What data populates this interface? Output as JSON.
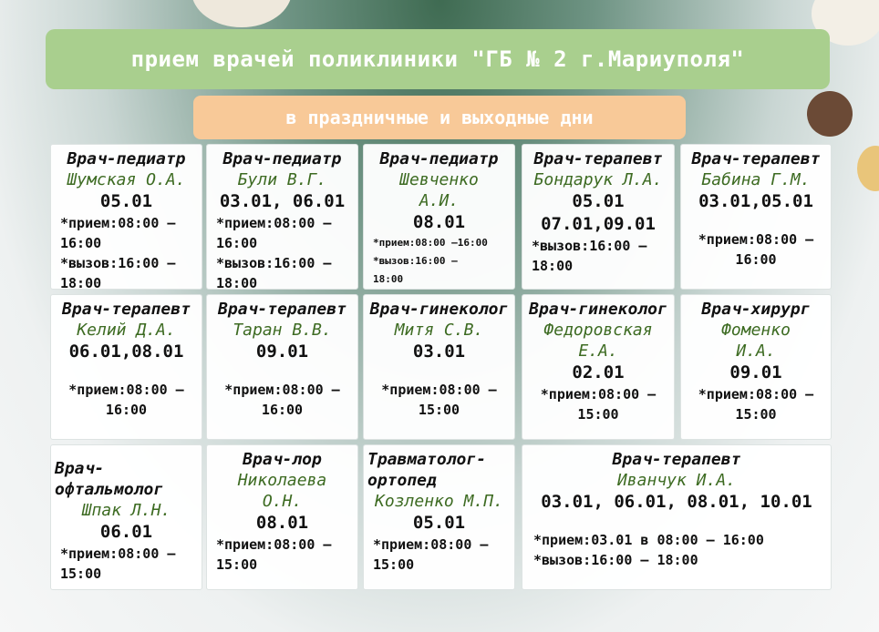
{
  "title": "прием врачей поликлиники \"ГБ № 2 г.Мариуполя\"",
  "subtitle": "в праздничные и выходные дни",
  "colors": {
    "banner": "#a9cf8e",
    "subtitle": "#f8c998",
    "name": "#3d6b22"
  },
  "cards": [
    {
      "role": "Врач-педиатр",
      "name": "Шумская О.А.",
      "dates": "05.01",
      "times": [
        "*прием:08:00 –\n16:00",
        "*вызов:16:00 –\n18:00"
      ]
    },
    {
      "role": "Врач-педиатр",
      "name": "Були В.Г.",
      "dates": "03.01, 06.01",
      "times": [
        "*прием:08:00 –\n16:00",
        "*вызов:16:00 –\n18:00"
      ]
    },
    {
      "role": "Врач-педиатр",
      "name": "Шевченко\nА.И.",
      "dates": "08.01",
      "times": [
        "*прием:08:00 –16:00",
        "*вызов:16:00 –\n18:00"
      ]
    },
    {
      "role": "Врач-терапевт",
      "name": "Бондарук Л.А.",
      "dates": "05.01\n07.01,09.01",
      "times": [
        "*вызов:16:00 –\n18:00"
      ]
    },
    {
      "role": "Врач-терапевт",
      "name": "Бабина Г.М.",
      "dates": "03.01,05.01",
      "times": [
        "*прием:08:00 –\n16:00"
      ]
    },
    {
      "role": "Врач-терапевт",
      "name": "Келий Д.А.",
      "dates": "06.01,08.01",
      "times": [
        "*прием:08:00 –\n16:00"
      ]
    },
    {
      "role": "Врач-терапевт",
      "name": "Таран В.В.",
      "dates": "09.01",
      "times": [
        "*прием:08:00 –\n16:00"
      ]
    },
    {
      "role": "Врач-гинеколог",
      "name": "Митя С.В.",
      "dates": "03.01",
      "times": [
        "*прием:08:00 –\n15:00"
      ]
    },
    {
      "role": "Врач-гинеколог",
      "name": "Федоровская\nЕ.А.",
      "dates": "02.01",
      "times": [
        "*прием:08:00 –\n15:00"
      ]
    },
    {
      "role": "Врач-хирург",
      "name": "Фоменко\nИ.А.",
      "dates": "09.01",
      "times": [
        "*прием:08:00 –\n15:00"
      ]
    },
    {
      "role": "Врач-\nофтальмолог",
      "name": "Шпак Л.Н.",
      "dates": "06.01",
      "times": [
        "*прием:08:00 –\n15:00"
      ]
    },
    {
      "role": "Врач-лор",
      "name": "Николаева\nО.Н.",
      "dates": "08.01",
      "times": [
        "*прием:08:00 –\n15:00"
      ]
    },
    {
      "role": "Травматолог-\nортопед",
      "name": "Козленко М.П.",
      "dates": "05.01",
      "times": [
        "*прием:08:00 –\n15:00"
      ]
    },
    {
      "role": "Врач-терапевт",
      "name": "Иванчук И.А.",
      "dates": "03.01, 06.01, 08.01, 10.01",
      "times": [
        "*прием:03.01  в 08:00 – 16:00",
        "*вызов:16:00 – 18:00"
      ]
    }
  ]
}
